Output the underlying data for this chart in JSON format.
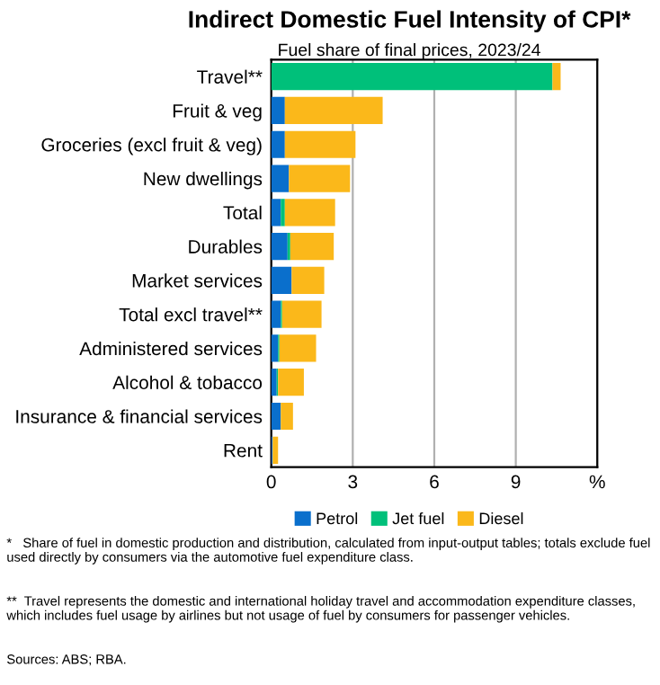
{
  "chart_data": {
    "type": "bar",
    "orientation": "horizontal",
    "stacked": true,
    "title": "Indirect Domestic Fuel Intensity of CPI*",
    "subtitle": "Fuel share of final prices, 2023/24",
    "categories": [
      "Travel**",
      "Fruit & veg",
      "Groceries (excl fruit & veg)",
      "New dwellings",
      "Total",
      "Durables",
      "Market services",
      "Total excl travel**",
      "Administered services",
      "Alcohol & tobacco",
      "Insurance & financial services",
      "Rent"
    ],
    "series": [
      {
        "name": "Petrol",
        "color": "#0a6fcc",
        "values": [
          0,
          0.5,
          0.5,
          0.65,
          0.35,
          0.6,
          0.75,
          0.35,
          0.25,
          0.2,
          0.35,
          0.05
        ]
      },
      {
        "name": "Jet fuel",
        "color": "#00c07a",
        "values": [
          10.35,
          0,
          0,
          0,
          0.15,
          0.1,
          0,
          0.05,
          0.05,
          0.05,
          0,
          0
        ]
      },
      {
        "name": "Diesel",
        "color": "#fbb81a",
        "values": [
          0.3,
          3.6,
          2.6,
          2.25,
          1.85,
          1.6,
          1.2,
          1.45,
          1.35,
          0.95,
          0.45,
          0.2
        ]
      }
    ],
    "xlim": [
      0,
      12
    ],
    "xticks": [
      0,
      3,
      6,
      9,
      {
        "value": 12,
        "label": "%"
      }
    ],
    "grid": "x",
    "legend": "bottom",
    "annotations": [
      "*   Share of fuel in domestic production and distribution, calculated from input-output tables; totals exclude fuel used directly by consumers via the automotive fuel expenditure class.",
      "**  Travel represents the domestic and international holiday travel and accommodation expenditure classes, which includes fuel usage by airlines but not usage of fuel by consumers for passenger vehicles.",
      "Sources: ABS; RBA."
    ]
  }
}
